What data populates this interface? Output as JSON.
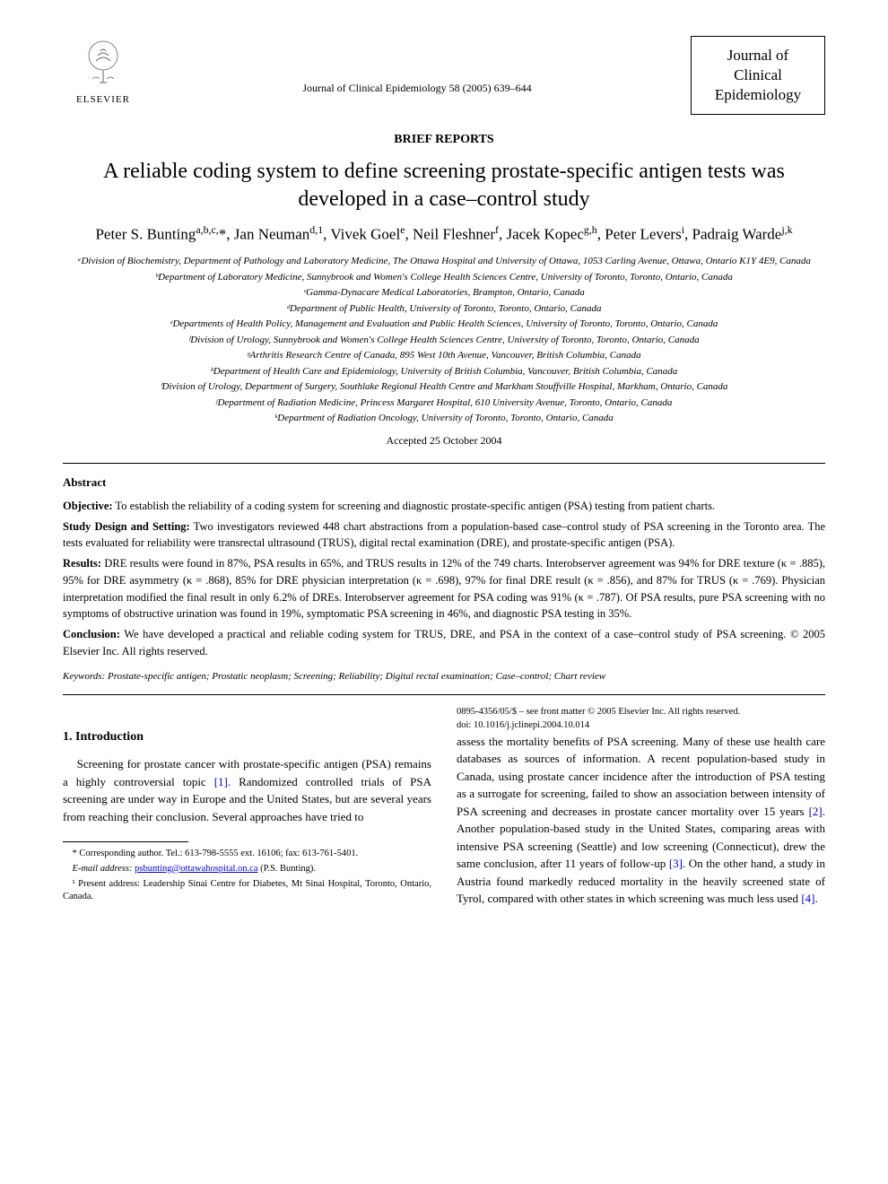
{
  "header": {
    "publisher": "ELSEVIER",
    "journal_ref": "Journal of Clinical Epidemiology 58 (2005) 639–644",
    "journal_box_line1": "Journal of",
    "journal_box_line2": "Clinical",
    "journal_box_line3": "Epidemiology"
  },
  "section_label": "BRIEF REPORTS",
  "title": "A reliable coding system to define screening prostate-specific antigen tests was developed in a case–control study",
  "authors_html": "Peter S. Bunting<sup>a,b,c,</sup>*, Jan Neuman<sup>d,1</sup>, Vivek Goel<sup>e</sup>, Neil Fleshner<sup>f</sup>, Jacek Kopec<sup>g,h</sup>, Peter Levers<sup>i</sup>, Padraig Warde<sup>j,k</sup>",
  "affiliations": [
    "ᵃDivision of Biochemistry, Department of Pathology and Laboratory Medicine, The Ottawa Hospital and University of Ottawa, 1053 Carling Avenue, Ottawa, Ontario K1Y 4E9, Canada",
    "ᵇDepartment of Laboratory Medicine, Sunnybrook and Women's College Health Sciences Centre, University of Toronto, Toronto, Ontario, Canada",
    "ᶜGamma-Dynacare Medical Laboratories, Brampton, Ontario, Canada",
    "ᵈDepartment of Public Health, University of Toronto, Toronto, Ontario, Canada",
    "ᵉDepartments of Health Policy, Management and Evaluation and Public Health Sciences, University of Toronto, Toronto, Ontario, Canada",
    "ᶠDivision of Urology, Sunnybrook and Women's College Health Sciences Centre, University of Toronto, Toronto, Ontario, Canada",
    "ᵍArthritis Research Centre of Canada, 895 West 10th Avenue, Vancouver, British Columbia, Canada",
    "ʰDepartment of Health Care and Epidemiology, University of British Columbia, Vancouver, British Columbia, Canada",
    "ⁱDivision of Urology, Department of Surgery, Southlake Regional Health Centre and Markham Stouffville Hospital, Markham, Ontario, Canada",
    "ʲDepartment of Radiation Medicine, Princess Margaret Hospital, 610 University Avenue, Toronto, Ontario, Canada",
    "ᵏDepartment of Radiation Oncology, University of Toronto, Toronto, Ontario, Canada"
  ],
  "accepted": "Accepted 25 October 2004",
  "abstract": {
    "heading": "Abstract",
    "objective_label": "Objective:",
    "objective": " To establish the reliability of a coding system for screening and diagnostic prostate-specific antigen (PSA) testing from patient charts.",
    "design_label": "Study Design and Setting:",
    "design": " Two investigators reviewed 448 chart abstractions from a population-based case–control study of PSA screening in the Toronto area. The tests evaluated for reliability were transrectal ultrasound (TRUS), digital rectal examination (DRE), and prostate-specific antigen (PSA).",
    "results_label": "Results:",
    "results": " DRE results were found in 87%, PSA results in 65%, and TRUS results in 12% of the 749 charts. Interobserver agreement was 94% for DRE texture (κ = .885), 95% for DRE asymmetry (κ = .868), 85% for DRE physician interpretation (κ = .698), 97% for final DRE result (κ = .856), and 87% for TRUS (κ = .769). Physician interpretation modified the final result in only 6.2% of DREs. Interobserver agreement for PSA coding was 91% (κ = .787). Of PSA results, pure PSA screening with no symptoms of obstructive urination was found in 19%, symptomatic PSA screening in 46%, and diagnostic PSA testing in 35%.",
    "conclusion_label": "Conclusion:",
    "conclusion": " We have developed a practical and reliable coding system for TRUS, DRE, and PSA in the context of a case–control study of PSA screening.   © 2005 Elsevier Inc. All rights reserved.",
    "keywords_label": "Keywords:",
    "keywords": " Prostate-specific antigen; Prostatic neoplasm; Screening; Reliability; Digital rectal examination; Case–control; Chart review"
  },
  "intro": {
    "heading": "1. Introduction",
    "para1_pre": "Screening for prostate cancer with prostate-specific antigen (PSA) remains a highly controversial topic ",
    "ref1": "[1]",
    "para1_post": ". Randomized controlled trials of PSA screening are under way in Europe and the United States, but are several years from reaching their conclusion. Several approaches have tried to",
    "para2_pre": "assess the mortality benefits of PSA screening. Many of these use health care databases as sources of information. A recent population-based study in Canada, using prostate cancer incidence after the introduction of PSA testing as a surrogate for screening, failed to show an association between intensity of PSA screening and decreases in prostate cancer mortality over 15 years ",
    "ref2": "[2]",
    "para2_mid1": ". Another population-based study in the United States, comparing areas with intensive PSA screening (Seattle) and low screening (Connecticut), drew the same conclusion, after 11 years of follow-up ",
    "ref3": "[3]",
    "para2_mid2": ". On the other hand, a study in Austria found markedly reduced mortality in the heavily screened state of Tyrol, compared with other states in which screening was much less used ",
    "ref4": "[4]",
    "para2_post": "."
  },
  "footnotes": {
    "corresponding": "* Corresponding author. Tel.: 613-798-5555 ext. 16106; fax: 613-761-5401.",
    "email_label": "E-mail address:",
    "email": "psbunting@ottawahospital.on.ca",
    "email_author": " (P.S. Bunting).",
    "note1": "¹ Present address: Leadership Sinai Centre for Diabetes, Mt Sinai Hospital, Toronto, Ontario, Canada."
  },
  "doi": {
    "line1": "0895-4356/05/$ – see front matter © 2005 Elsevier Inc. All rights reserved.",
    "line2": "doi: 10.1016/j.jclinepi.2004.10.014"
  },
  "colors": {
    "text": "#000000",
    "link": "#0000cc",
    "background": "#ffffff"
  }
}
